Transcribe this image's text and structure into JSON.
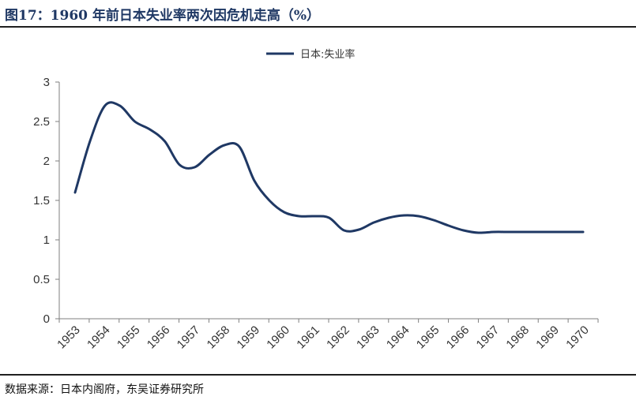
{
  "header": {
    "title": "图17：1960 年前日本失业率两次因危机走高（%）"
  },
  "footer": {
    "source": "数据来源：日本内阁府，东吴证券研究所"
  },
  "chart_data": {
    "type": "line",
    "x": [
      1953,
      1953.5,
      1954,
      1954.5,
      1955,
      1955.5,
      1956,
      1956.5,
      1957,
      1957.5,
      1958,
      1958.5,
      1959,
      1959.5,
      1960,
      1960.5,
      1961,
      1961.5,
      1962,
      1962.5,
      1963,
      1963.5,
      1964,
      1964.5,
      1965,
      1965.5,
      1966,
      1966.5,
      1967,
      1967.5,
      1968,
      1968.5,
      1969,
      1969.5,
      1970
    ],
    "categories": [
      "1953",
      "1954",
      "1955",
      "1956",
      "1957",
      "1958",
      "1959",
      "1960",
      "1961",
      "1962",
      "1963",
      "1964",
      "1965",
      "1966",
      "1967",
      "1968",
      "1969",
      "1970"
    ],
    "series": [
      {
        "name": "日本:失业率",
        "color": "#1f3864",
        "values": [
          1.6,
          2.25,
          2.7,
          2.7,
          2.5,
          2.4,
          2.25,
          1.95,
          1.92,
          2.08,
          2.2,
          2.18,
          1.75,
          1.5,
          1.35,
          1.3,
          1.3,
          1.28,
          1.12,
          1.13,
          1.22,
          1.28,
          1.31,
          1.3,
          1.25,
          1.18,
          1.12,
          1.09,
          1.1,
          1.1,
          1.1,
          1.1,
          1.1,
          1.1,
          1.1
        ]
      }
    ],
    "yticks": [
      "0",
      "0.5",
      "1",
      "1.5",
      "2",
      "2.5",
      "3"
    ],
    "ylim": [
      0,
      3
    ],
    "xlim": [
      1953,
      1970
    ],
    "legend_position": "top-center",
    "grid": false
  }
}
